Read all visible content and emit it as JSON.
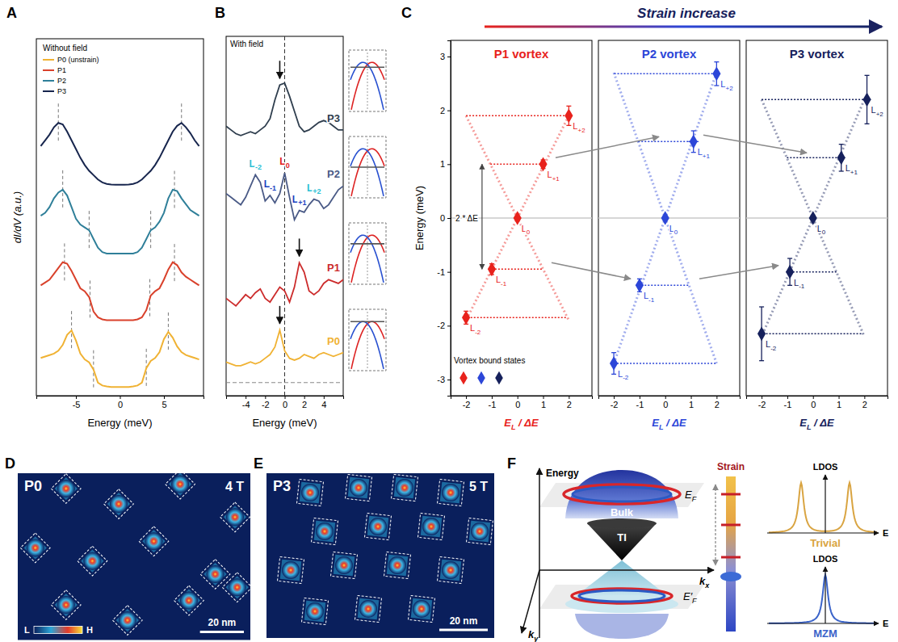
{
  "chart_data": [
    {
      "panel": "A",
      "type": "line",
      "legend_title": "Without field",
      "legend": "upper left",
      "tick_labels": "x",
      "x_label": "Energy (meV)",
      "y_label": "dI/dV (a.u.)",
      "xlim": [
        -9.5,
        9.5
      ],
      "xticks": [
        -5,
        0,
        5
      ],
      "ylim": [
        -0.3,
        12
      ],
      "x": [
        -9,
        -8.5,
        -8,
        -7.5,
        -7,
        -6.5,
        -6,
        -5.5,
        -5,
        -4.5,
        -4,
        -3.5,
        -3,
        -2.5,
        -2,
        -1.5,
        -1,
        -0.5,
        0,
        0.5,
        1,
        1.5,
        2,
        2.5,
        3,
        3.5,
        4,
        4.5,
        5,
        5.5,
        6,
        6.5,
        7,
        7.5,
        8,
        8.5,
        9
      ],
      "series": [
        {
          "name": "P0 (unstrain)",
          "color": "#f0b233",
          "dashed_x": [
            -5.5,
            -3,
            3,
            5.5
          ],
          "values": [
            1.0,
            1.05,
            1.1,
            1.15,
            1.25,
            1.45,
            1.8,
            1.95,
            1.6,
            1.15,
            0.95,
            0.85,
            0.6,
            0.15,
            0.05,
            0.02,
            0,
            0,
            0,
            0,
            0,
            0.02,
            0.05,
            0.15,
            0.65,
            0.9,
            1.0,
            1.2,
            1.65,
            1.9,
            1.7,
            1.4,
            1.2,
            1.1,
            1.05,
            1.0,
            0.95
          ]
        },
        {
          "name": "P1",
          "color": "#d9412b",
          "dashed_x": [
            -6.3,
            -3.4,
            3.4,
            6.2
          ],
          "values": [
            3.5,
            3.6,
            3.7,
            3.9,
            4.1,
            4.3,
            4.25,
            4.0,
            3.7,
            3.4,
            3.3,
            3.1,
            2.6,
            2.4,
            2.33,
            2.3,
            2.3,
            2.3,
            2.3,
            2.3,
            2.3,
            2.3,
            2.33,
            2.4,
            2.65,
            3.15,
            3.3,
            3.4,
            3.7,
            4.05,
            4.3,
            4.2,
            3.95,
            3.8,
            3.7,
            3.6,
            3.5
          ]
        },
        {
          "name": "P2",
          "color": "#2f7f99",
          "dashed_x": [
            -6.5,
            -3.5,
            3.5,
            6.2
          ],
          "values": [
            5.9,
            6.0,
            6.2,
            6.5,
            6.7,
            6.8,
            6.6,
            6.2,
            5.8,
            5.6,
            5.5,
            5.4,
            5.1,
            4.8,
            4.65,
            4.6,
            4.6,
            4.6,
            4.6,
            4.6,
            4.6,
            4.6,
            4.65,
            4.8,
            5.1,
            5.4,
            5.5,
            5.7,
            6.0,
            6.5,
            6.8,
            6.75,
            6.5,
            6.3,
            6.1,
            6.0,
            5.9
          ]
        },
        {
          "name": "P3",
          "color": "#17254d",
          "dashed_x": [
            -7,
            7
          ],
          "values": [
            8.3,
            8.5,
            8.7,
            8.95,
            9.1,
            9.05,
            8.8,
            8.5,
            8.2,
            7.9,
            7.65,
            7.45,
            7.3,
            7.15,
            7.05,
            7.0,
            6.98,
            6.97,
            6.97,
            6.97,
            6.98,
            7.0,
            7.05,
            7.15,
            7.3,
            7.45,
            7.65,
            7.9,
            8.2,
            8.5,
            8.8,
            9.0,
            9.1,
            8.95,
            8.75,
            8.5,
            8.3
          ]
        }
      ]
    },
    {
      "panel": "B",
      "type": "line",
      "title": "With field",
      "tick_labels": "x",
      "x_label": "Energy (meV)",
      "xlim": [
        -6,
        6
      ],
      "xticks": [
        -4,
        -2,
        0,
        2,
        4
      ],
      "ylim": [
        0,
        9.6
      ],
      "ref_lines": {
        "x": 0,
        "y": 0.35
      },
      "x": [
        -6,
        -5.5,
        -5,
        -4.5,
        -4,
        -3.5,
        -3,
        -2.5,
        -2,
        -1.5,
        -1,
        -0.5,
        0,
        0.5,
        1,
        1.5,
        2,
        2.5,
        3,
        3.5,
        4,
        4.5,
        5,
        5.5,
        6
      ],
      "series": [
        {
          "name": "P3",
          "color": "#2f3e4e",
          "arrow_x": -0.5,
          "values": [
            7.2,
            7.1,
            7.0,
            6.95,
            7.0,
            7.05,
            7.0,
            7.1,
            7.2,
            7.4,
            7.9,
            8.3,
            8.35,
            8.0,
            7.6,
            7.2,
            7.05,
            7.1,
            7.2,
            7.3,
            7.35,
            7.3,
            7.2,
            7.1,
            7.1
          ]
        },
        {
          "name": "P2",
          "color": "#4a5a86",
          "values": [
            5.4,
            5.3,
            5.2,
            5.1,
            5.3,
            5.6,
            5.9,
            5.7,
            5.2,
            5.35,
            5.15,
            5.4,
            5.95,
            5.3,
            4.7,
            4.95,
            4.9,
            5.1,
            5.25,
            5.2,
            5.0,
            5.1,
            5.3,
            5.5,
            5.6
          ],
          "annotations": [
            {
              "text": "L",
              "sub": "-2",
              "x": -3,
              "color": "#2cc0d4"
            },
            {
              "text": "L",
              "sub": "-1",
              "x": -1.5,
              "color": "#1d3fbf"
            },
            {
              "text": "L",
              "sub": "0",
              "x": 0,
              "color": "#e0201b"
            },
            {
              "text": "L",
              "sub": "+1",
              "x": 1.5,
              "color": "#1d3fbf"
            },
            {
              "text": "L",
              "sub": "+2",
              "x": 3,
              "color": "#2cc0d4"
            }
          ]
        },
        {
          "name": "P1",
          "color": "#cc2b2b",
          "arrow_x": 1.5,
          "values": [
            2.6,
            2.5,
            2.4,
            2.55,
            2.7,
            2.6,
            2.75,
            2.85,
            2.6,
            2.5,
            2.7,
            2.9,
            2.8,
            2.5,
            2.9,
            3.55,
            3.3,
            2.8,
            2.7,
            2.8,
            3.0,
            3.1,
            3.05,
            3.0,
            3.1
          ]
        },
        {
          "name": "P0",
          "color": "#f0b233",
          "arrow_x": -0.5,
          "values": [
            0.9,
            0.85,
            0.8,
            0.8,
            0.85,
            0.9,
            0.85,
            0.9,
            1.0,
            1.1,
            1.3,
            1.75,
            1.2,
            1.0,
            0.95,
            1.0,
            1.1,
            1.05,
            1.0,
            1.1,
            1.15,
            1.1,
            1.05,
            1.1,
            1.15
          ]
        }
      ]
    },
    {
      "panel": "C",
      "type": "scatter",
      "title": "Strain increase",
      "marker": "diamond",
      "legend": "lower left",
      "legend_title": "Vortex bound states",
      "annotation": "2 * ΔE",
      "y_label": "Energy (meV)",
      "x_label": {
        "text": "E",
        "sub": "L",
        "rest": " / ΔE"
      },
      "xlim": [
        -2.6,
        2.9
      ],
      "xticks": [
        -2,
        -1,
        0,
        1,
        2
      ],
      "ylim": [
        -3.3,
        3.3
      ],
      "yticks": [
        -3,
        -2,
        -1,
        0,
        1,
        2,
        3
      ],
      "series": [
        {
          "name": "P1 vortex",
          "color": "#e8221c",
          "x": [
            -2,
            -1,
            0,
            1,
            2
          ],
          "values": [
            -1.85,
            -0.95,
            0,
            1.0,
            1.9
          ],
          "x_err": [
            0.1,
            0.1,
            0,
            0.1,
            0.12
          ],
          "y_err": [
            0.12,
            0.1,
            0,
            0.08,
            0.18
          ],
          "labels": [
            {
              "text": "L",
              "sub": "-2"
            },
            {
              "text": "L",
              "sub": "-1"
            },
            {
              "text": "L",
              "sub": "0"
            },
            {
              "text": "L",
              "sub": "+1"
            },
            {
              "text": "L",
              "sub": "+2"
            }
          ]
        },
        {
          "name": "P2 vortex",
          "color": "#2c46d8",
          "x": [
            -2,
            -1,
            0,
            1.1,
            2
          ],
          "values": [
            -2.7,
            -1.25,
            0,
            1.42,
            2.68
          ],
          "x_err": [
            0.12,
            0.15,
            0,
            0.2,
            0.12
          ],
          "y_err": [
            0.2,
            0.12,
            0,
            0.2,
            0.22
          ],
          "labels": [
            {
              "text": "L",
              "sub": "-2"
            },
            {
              "text": "L",
              "sub": "-1"
            },
            {
              "text": "L",
              "sub": "0"
            },
            {
              "text": "L",
              "sub": "+1"
            },
            {
              "text": "L",
              "sub": "+2"
            }
          ]
        },
        {
          "name": "P3 vortex",
          "color": "#16215c",
          "x": [
            -2,
            -0.9,
            0,
            1.1,
            2.1
          ],
          "values": [
            -2.15,
            -1.0,
            0,
            1.12,
            2.2
          ],
          "x_err": [
            0.12,
            0.15,
            0,
            0.15,
            0.15
          ],
          "y_err": [
            0.5,
            0.25,
            0,
            0.25,
            0.45
          ],
          "labels": [
            {
              "text": "L",
              "sub": "-2"
            },
            {
              "text": "L",
              "sub": "-1"
            },
            {
              "text": "L",
              "sub": "0"
            },
            {
              "text": "L",
              "sub": "+1"
            },
            {
              "text": "L",
              "sub": "+2"
            }
          ]
        }
      ]
    }
  ],
  "images": [
    {
      "panel": "D",
      "tag": "P0",
      "field": "4 T",
      "scale_bar": "20 nm",
      "scale_bar_nm": 20,
      "width_nm": 106,
      "height_nm": 76,
      "marker": "diamond",
      "colorbar": {
        "low": "L",
        "high": "H"
      },
      "vortex_x": [
        22,
        46,
        74,
        99,
        8,
        34,
        62,
        90,
        22,
        50,
        78,
        100
      ],
      "vortex_y": [
        7,
        14,
        5,
        20,
        34,
        40,
        31,
        46,
        60,
        67,
        58,
        52
      ]
    },
    {
      "panel": "E",
      "tag": "P3",
      "field": "5 T",
      "scale_bar": "20 nm",
      "scale_bar_nm": 20,
      "width_nm": 94,
      "height_nm": 68,
      "marker": "square",
      "vortex_x": [
        18,
        38,
        57,
        76,
        24,
        46,
        68,
        88,
        10,
        32,
        54,
        76,
        20,
        42,
        64
      ],
      "vortex_y": [
        8,
        6,
        6,
        8,
        24,
        22,
        22,
        24,
        40,
        38,
        38,
        40,
        57,
        56,
        56
      ]
    }
  ],
  "diagram": {
    "panel": "F",
    "energy_axis": "Energy",
    "bulk": "Bulk",
    "ti": "TI",
    "fermi_upper": {
      "text": "E",
      "sub": "F"
    },
    "fermi_lower": {
      "text": "E′",
      "sub": "F"
    },
    "kx": {
      "text": "k",
      "sub": "x"
    },
    "ky": {
      "text": "k",
      "sub": "y"
    },
    "strain": "Strain",
    "ldos": [
      {
        "y_label": "LDOS",
        "x_label": "E",
        "name": "Trivial",
        "color": "#d9a441"
      },
      {
        "y_label": "LDOS",
        "x_label": "E",
        "name": "MZM",
        "color": "#3a63c9"
      }
    ]
  }
}
